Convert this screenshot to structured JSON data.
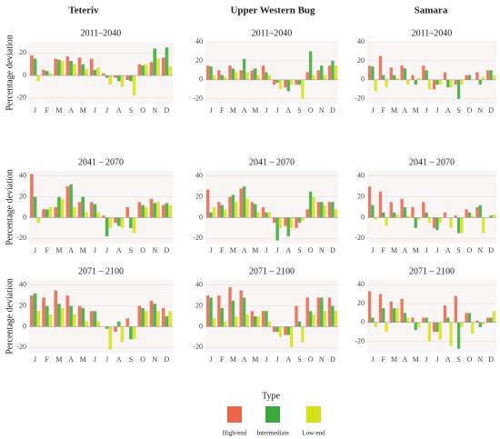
{
  "columns": [
    "Teteriv",
    "Upper Western Bug",
    "Samara"
  ],
  "legend": {
    "title": "Type"
  },
  "chart_data": [
    {
      "type": "bar",
      "title": "2011–2040",
      "ylabel": "Percentage deviation",
      "categories": [
        "J",
        "F",
        "M",
        "A",
        "M",
        "J",
        "J",
        "A",
        "S",
        "O",
        "N",
        "D"
      ],
      "ylim": [
        -25,
        30
      ],
      "yticks": [
        -20,
        0,
        20
      ],
      "series": [
        {
          "name": "High-end",
          "color": "#e8644a",
          "values": [
            18,
            5,
            15,
            17,
            16,
            15,
            2,
            -2,
            -4,
            10,
            12,
            16
          ]
        },
        {
          "name": "Intermediate",
          "color": "#3aa83a",
          "values": [
            15,
            4,
            14,
            13,
            10,
            5,
            -2,
            -5,
            -5,
            9,
            24,
            25
          ]
        },
        {
          "name": "Low-end",
          "color": "#d6e016",
          "values": [
            -5,
            2,
            13,
            10,
            6,
            7,
            -8,
            -10,
            -18,
            10,
            15,
            8
          ]
        }
      ]
    },
    {
      "type": "bar",
      "title": "2011–2040",
      "categories": [
        "J",
        "F",
        "M",
        "A",
        "M",
        "J",
        "J",
        "A",
        "S",
        "O",
        "N",
        "D"
      ],
      "ylim": [
        -25,
        40
      ],
      "yticks": [
        -20,
        0,
        20,
        40
      ],
      "series": [
        {
          "name": "High-end",
          "color": "#e8644a",
          "values": [
            15,
            10,
            15,
            10,
            10,
            15,
            -5,
            -8,
            -5,
            8,
            10,
            15
          ]
        },
        {
          "name": "Intermediate",
          "color": "#3aa83a",
          "values": [
            14,
            5,
            12,
            22,
            12,
            8,
            -3,
            -12,
            -5,
            30,
            15,
            20
          ]
        },
        {
          "name": "Low-end",
          "color": "#d6e016",
          "values": [
            5,
            3,
            8,
            8,
            5,
            5,
            -10,
            -5,
            -20,
            5,
            5,
            15
          ]
        }
      ]
    },
    {
      "type": "bar",
      "title": "2011–2040",
      "categories": [
        "J",
        "F",
        "M",
        "A",
        "M",
        "J",
        "J",
        "A",
        "S",
        "O",
        "N",
        "D"
      ],
      "ylim": [
        -25,
        40
      ],
      "yticks": [
        -20,
        0,
        20,
        40
      ],
      "series": [
        {
          "name": "High-end",
          "color": "#e8644a",
          "values": [
            15,
            25,
            13,
            15,
            5,
            15,
            -10,
            8,
            -5,
            5,
            8,
            10
          ]
        },
        {
          "name": "Intermediate",
          "color": "#3aa83a",
          "values": [
            14,
            5,
            5,
            12,
            -5,
            10,
            -5,
            -8,
            -20,
            5,
            -5,
            10
          ]
        },
        {
          "name": "Low-end",
          "color": "#d6e016",
          "values": [
            -12,
            -8,
            2,
            -5,
            2,
            -10,
            -5,
            -8,
            -5,
            0,
            3,
            5
          ]
        }
      ]
    },
    {
      "type": "bar",
      "title": "2041 – 2070",
      "ylabel": "Percentage deviation",
      "categories": [
        "J",
        "F",
        "M",
        "A",
        "M",
        "J",
        "J",
        "A",
        "S",
        "O",
        "N",
        "D"
      ],
      "ylim": [
        -25,
        45
      ],
      "yticks": [
        -20,
        0,
        20,
        40
      ],
      "series": [
        {
          "name": "High-end",
          "color": "#e8644a",
          "values": [
            42,
            8,
            10,
            30,
            15,
            15,
            2,
            -5,
            10,
            15,
            18,
            12
          ]
        },
        {
          "name": "Intermediate",
          "color": "#3aa83a",
          "values": [
            20,
            8,
            20,
            32,
            20,
            13,
            -18,
            -8,
            -10,
            12,
            14,
            14
          ]
        },
        {
          "name": "Low-end",
          "color": "#d6e016",
          "values": [
            -5,
            10,
            18,
            10,
            5,
            5,
            -10,
            -10,
            -15,
            10,
            15,
            12
          ]
        }
      ]
    },
    {
      "type": "bar",
      "title": "2041 – 2070",
      "categories": [
        "J",
        "F",
        "M",
        "A",
        "M",
        "J",
        "J",
        "A",
        "S",
        "O",
        "N",
        "D"
      ],
      "ylim": [
        -25,
        45
      ],
      "yticks": [
        -20,
        0,
        20,
        40
      ],
      "series": [
        {
          "name": "High-end",
          "color": "#e8644a",
          "values": [
            27,
            15,
            20,
            28,
            15,
            10,
            -5,
            -8,
            -10,
            8,
            15,
            15
          ]
        },
        {
          "name": "Intermediate",
          "color": "#3aa83a",
          "values": [
            5,
            12,
            22,
            30,
            13,
            5,
            -22,
            -18,
            -5,
            25,
            15,
            15
          ]
        },
        {
          "name": "Low-end",
          "color": "#d6e016",
          "values": [
            10,
            8,
            15,
            18,
            5,
            5,
            -10,
            -10,
            -3,
            20,
            12,
            8
          ]
        }
      ]
    },
    {
      "type": "bar",
      "title": "2041 – 2070",
      "categories": [
        "J",
        "F",
        "M",
        "A",
        "M",
        "J",
        "J",
        "A",
        "S",
        "O",
        "N",
        "D"
      ],
      "ylim": [
        -25,
        45
      ],
      "yticks": [
        -20,
        0,
        20,
        40
      ],
      "series": [
        {
          "name": "High-end",
          "color": "#e8644a",
          "values": [
            30,
            25,
            15,
            18,
            10,
            15,
            -10,
            5,
            2,
            8,
            10,
            0
          ]
        },
        {
          "name": "Intermediate",
          "color": "#3aa83a",
          "values": [
            12,
            5,
            5,
            10,
            -10,
            5,
            -12,
            0,
            -15,
            5,
            12,
            2
          ]
        },
        {
          "name": "Low-end",
          "color": "#d6e016",
          "values": [
            -2,
            -8,
            3,
            2,
            -2,
            -5,
            -5,
            -10,
            -15,
            2,
            -15,
            3
          ]
        }
      ]
    },
    {
      "type": "bar",
      "title": "2071 – 2100",
      "ylabel": "Percentage deviation",
      "categories": [
        "J",
        "F",
        "M",
        "A",
        "M",
        "J",
        "J",
        "A",
        "S",
        "O",
        "N",
        "D"
      ],
      "ylim": [
        -25,
        45
      ],
      "yticks": [
        -20,
        0,
        20,
        40
      ],
      "series": [
        {
          "name": "High-end",
          "color": "#e8644a",
          "values": [
            30,
            28,
            35,
            30,
            20,
            15,
            0,
            -5,
            8,
            20,
            25,
            18
          ]
        },
        {
          "name": "Intermediate",
          "color": "#3aa83a",
          "values": [
            32,
            20,
            22,
            20,
            18,
            15,
            -2,
            5,
            -12,
            18,
            22,
            10
          ]
        },
        {
          "name": "Low-end",
          "color": "#d6e016",
          "values": [
            15,
            12,
            18,
            12,
            5,
            5,
            -22,
            -15,
            -12,
            15,
            15,
            15
          ]
        }
      ]
    },
    {
      "type": "bar",
      "title": "2071 – 2100",
      "categories": [
        "J",
        "F",
        "M",
        "A",
        "M",
        "J",
        "J",
        "A",
        "S",
        "O",
        "N",
        "D"
      ],
      "ylim": [
        -25,
        45
      ],
      "yticks": [
        -20,
        0,
        20,
        40
      ],
      "series": [
        {
          "name": "High-end",
          "color": "#e8644a",
          "values": [
            30,
            30,
            38,
            35,
            15,
            15,
            -5,
            -8,
            20,
            28,
            28,
            28
          ]
        },
        {
          "name": "Intermediate",
          "color": "#3aa83a",
          "values": [
            28,
            18,
            25,
            28,
            10,
            15,
            -5,
            -8,
            5,
            15,
            28,
            20
          ]
        },
        {
          "name": "Low-end",
          "color": "#d6e016",
          "values": [
            8,
            5,
            10,
            12,
            10,
            5,
            -10,
            -20,
            -15,
            12,
            15,
            15
          ]
        }
      ]
    },
    {
      "type": "bar",
      "title": "2071 – 2100",
      "categories": [
        "J",
        "F",
        "M",
        "A",
        "M",
        "J",
        "J",
        "A",
        "S",
        "O",
        "N",
        "D"
      ],
      "ylim": [
        -32,
        45
      ],
      "yticks": [
        -20,
        0,
        20,
        40
      ],
      "series": [
        {
          "name": "High-end",
          "color": "#e8644a",
          "values": [
            33,
            30,
            22,
            25,
            5,
            5,
            -10,
            18,
            28,
            10,
            2,
            5
          ]
        },
        {
          "name": "Intermediate",
          "color": "#3aa83a",
          "values": [
            5,
            15,
            15,
            10,
            -8,
            5,
            -10,
            5,
            -28,
            10,
            -5,
            5
          ]
        },
        {
          "name": "Low-end",
          "color": "#d6e016",
          "values": [
            -5,
            -10,
            15,
            5,
            -5,
            -20,
            -18,
            -25,
            -5,
            -12,
            -2,
            12
          ]
        }
      ]
    }
  ]
}
